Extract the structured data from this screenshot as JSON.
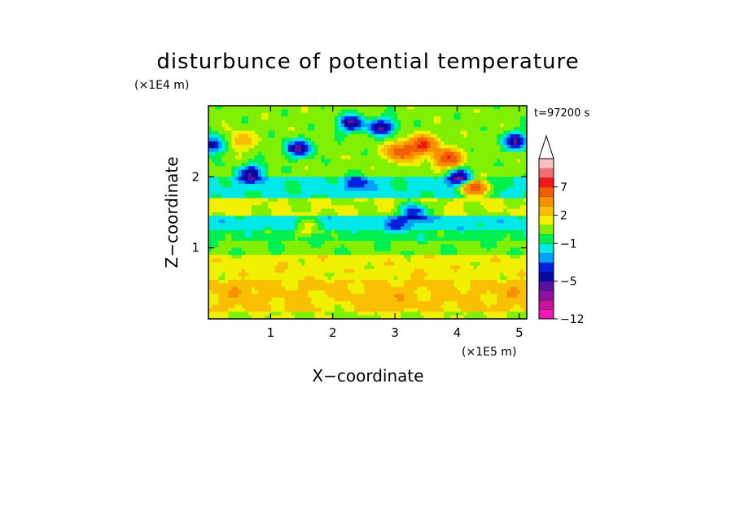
{
  "chart_data": {
    "type": "heatmap",
    "title": "disturbunce of potential temperature",
    "xlabel": "X−coordinate",
    "ylabel": "Z−coordinate",
    "x_unit": "(×1E5 m)",
    "y_unit": "(×1E4 m)",
    "time_label": "t=97200 s",
    "xlim": [
      0,
      5.12
    ],
    "ylim": [
      0,
      3.0
    ],
    "x_ticks": [
      "1",
      "2",
      "3",
      "4",
      "5"
    ],
    "x_tick_values": [
      1,
      2,
      3,
      4,
      5
    ],
    "y_ticks": [
      "1",
      "2"
    ],
    "y_tick_values": [
      1,
      2
    ],
    "grid": false,
    "colorbar": {
      "levels": [
        -12,
        -10,
        -8,
        -6,
        -5,
        -4,
        -3,
        -2,
        -1,
        0,
        1,
        2,
        3,
        5,
        7,
        9,
        11
      ],
      "tick_labels": [
        "7",
        "2",
        "−1",
        "−5",
        "−12"
      ],
      "tick_values": [
        7,
        2,
        -1,
        -5,
        -12
      ],
      "colors": [
        "#f018b8",
        "#c8149a",
        "#9010a0",
        "#5810a0",
        "#0808a0",
        "#0020e0",
        "#00a0ff",
        "#00e8e8",
        "#00f050",
        "#80f000",
        "#f0f000",
        "#f8c000",
        "#f89000",
        "#f06000",
        "#f01818",
        "#f07070",
        "#f8c0c0"
      ],
      "extend_top": true
    },
    "features": [
      {
        "x": 0.5,
        "z": 2.5,
        "value": 3
      },
      {
        "x": 1.45,
        "z": 2.4,
        "value": -5
      },
      {
        "x": 0.7,
        "z": 2.05,
        "value": -5
      },
      {
        "x": 0.05,
        "z": 2.45,
        "value": -5
      },
      {
        "x": 2.3,
        "z": 2.75,
        "value": -5
      },
      {
        "x": 2.8,
        "z": 2.7,
        "value": -5
      },
      {
        "x": 3.1,
        "z": 2.35,
        "value": 7
      },
      {
        "x": 3.45,
        "z": 2.45,
        "value": 7
      },
      {
        "x": 3.85,
        "z": 2.25,
        "value": 7
      },
      {
        "x": 4.3,
        "z": 1.85,
        "value": 7
      },
      {
        "x": 4.95,
        "z": 2.5,
        "value": -5
      },
      {
        "x": 4.05,
        "z": 2.0,
        "value": -5
      },
      {
        "x": 2.4,
        "z": 1.9,
        "value": -4
      },
      {
        "x": 3.3,
        "z": 1.5,
        "value": -4
      },
      {
        "x": 3.0,
        "z": 1.3,
        "value": -3
      },
      {
        "x": 0.4,
        "z": 1.6,
        "value": 2
      },
      {
        "x": 1.6,
        "z": 1.3,
        "value": 1
      },
      {
        "x": 1.0,
        "z": 0.65,
        "value": 2
      },
      {
        "x": 3.5,
        "z": 0.65,
        "value": 2
      },
      {
        "x": 0.5,
        "z": 0.4,
        "value": 3
      },
      {
        "x": 2.9,
        "z": 0.3,
        "value": 3
      },
      {
        "x": 5.0,
        "z": 0.4,
        "value": 3
      },
      {
        "x": 2.0,
        "z": 0.15,
        "value": 1
      }
    ]
  }
}
